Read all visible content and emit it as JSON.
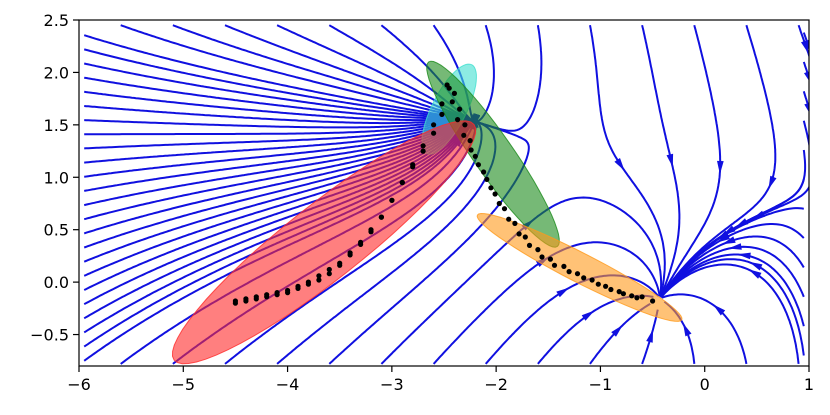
{
  "chart_data": {
    "type": "scatter",
    "title": "",
    "xlabel": "",
    "ylabel": "",
    "xlim": [
      -6,
      1
    ],
    "ylim": [
      -0.8,
      2.5
    ],
    "grid": false,
    "x_ticks": [
      {
        "value": -6,
        "label": "−6"
      },
      {
        "value": -5,
        "label": "−5"
      },
      {
        "value": -4,
        "label": "−4"
      },
      {
        "value": -3,
        "label": "−3"
      },
      {
        "value": -2,
        "label": "−2"
      },
      {
        "value": -1,
        "label": "−1"
      },
      {
        "value": 0,
        "label": "0"
      },
      {
        "value": 1,
        "label": "1"
      }
    ],
    "y_ticks": [
      {
        "value": -0.5,
        "label": "−0.5"
      },
      {
        "value": 0.0,
        "label": "0.0"
      },
      {
        "value": 0.5,
        "label": "0.5"
      },
      {
        "value": 1.0,
        "label": "1.0"
      },
      {
        "value": 1.5,
        "label": "1.5"
      },
      {
        "value": 2.0,
        "label": "2.0"
      },
      {
        "value": 2.5,
        "label": "2.5"
      }
    ],
    "colors": {
      "streamline": "#1010e0",
      "points": "#000000",
      "ellipse_red": "#ff2a2a",
      "ellipse_green": "#1a8a1a",
      "ellipse_cyan": "#40e0d0",
      "ellipse_orange": "#ff9a1a"
    },
    "ellipses": [
      {
        "color": "cyan",
        "center": [
          -2.45,
          1.65
        ],
        "width": 0.95,
        "height": 0.33,
        "angle_deg": 63
      },
      {
        "color": "green",
        "center": [
          -2.03,
          1.22
        ],
        "width": 2.15,
        "height": 0.38,
        "angle_deg": -55
      },
      {
        "color": "red",
        "center": [
          -3.65,
          0.38
        ],
        "width": 3.65,
        "height": 0.72,
        "angle_deg": 38
      },
      {
        "color": "orange",
        "center": [
          -1.2,
          0.14
        ],
        "width": 2.2,
        "height": 0.28,
        "angle_deg": -27
      }
    ],
    "trajectory": [
      [
        -4.5,
        -0.18
      ],
      [
        -4.4,
        -0.16
      ],
      [
        -4.3,
        -0.14
      ],
      [
        -4.2,
        -0.12
      ],
      [
        -4.1,
        -0.1
      ],
      [
        -4.0,
        -0.08
      ],
      [
        -3.9,
        -0.04
      ],
      [
        -3.8,
        0.0
      ],
      [
        -3.7,
        0.06
      ],
      [
        -3.6,
        0.12
      ],
      [
        -3.5,
        0.18
      ],
      [
        -3.4,
        0.28
      ],
      [
        -3.3,
        0.38
      ],
      [
        -3.2,
        0.5
      ],
      [
        -3.1,
        0.62
      ],
      [
        -3.0,
        0.78
      ],
      [
        -2.9,
        0.95
      ],
      [
        -2.8,
        1.12
      ],
      [
        -2.7,
        1.3
      ],
      [
        -2.6,
        1.5
      ],
      [
        -2.52,
        1.7
      ],
      [
        -2.47,
        1.88
      ],
      [
        -2.45,
        1.85
      ],
      [
        -2.52,
        1.6
      ],
      [
        -2.6,
        1.42
      ],
      [
        -2.7,
        1.25
      ],
      [
        -2.8,
        1.1
      ],
      [
        -2.9,
        0.95
      ],
      [
        -3.0,
        0.78
      ],
      [
        -3.1,
        0.62
      ],
      [
        -3.2,
        0.48
      ],
      [
        -3.3,
        0.36
      ],
      [
        -3.4,
        0.26
      ],
      [
        -3.5,
        0.16
      ],
      [
        -3.6,
        0.08
      ],
      [
        -3.7,
        0.02
      ],
      [
        -3.8,
        -0.02
      ],
      [
        -3.9,
        -0.06
      ],
      [
        -4.0,
        -0.1
      ],
      [
        -4.1,
        -0.12
      ],
      [
        -4.2,
        -0.14
      ],
      [
        -4.3,
        -0.16
      ],
      [
        -4.4,
        -0.18
      ],
      [
        -4.5,
        -0.2
      ],
      [
        -2.4,
        1.8
      ],
      [
        -2.35,
        1.65
      ],
      [
        -2.3,
        1.5
      ],
      [
        -2.25,
        1.35
      ],
      [
        -2.2,
        1.2
      ],
      [
        -2.12,
        1.05
      ],
      [
        -2.05,
        0.9
      ],
      [
        -1.97,
        0.75
      ],
      [
        -1.88,
        0.6
      ],
      [
        -1.78,
        0.46
      ],
      [
        -1.68,
        0.35
      ],
      [
        -1.56,
        0.24
      ],
      [
        -1.44,
        0.16
      ],
      [
        -1.3,
        0.1
      ],
      [
        -1.16,
        0.04
      ],
      [
        -1.02,
        -0.02
      ],
      [
        -0.9,
        -0.07
      ],
      [
        -0.78,
        -0.11
      ],
      [
        -0.65,
        -0.15
      ],
      [
        -0.5,
        -0.18
      ],
      [
        -2.42,
        1.72
      ],
      [
        -2.37,
        1.55
      ],
      [
        -2.31,
        1.4
      ],
      [
        -2.24,
        1.26
      ],
      [
        -2.17,
        1.12
      ],
      [
        -2.09,
        0.98
      ],
      [
        -2.01,
        0.84
      ],
      [
        -1.92,
        0.7
      ],
      [
        -1.82,
        0.56
      ],
      [
        -1.72,
        0.43
      ],
      [
        -1.6,
        0.31
      ],
      [
        -1.48,
        0.22
      ],
      [
        -1.35,
        0.15
      ],
      [
        -1.22,
        0.08
      ],
      [
        -1.08,
        0.02
      ],
      [
        -0.95,
        -0.04
      ],
      [
        -0.82,
        -0.09
      ],
      [
        -0.7,
        -0.13
      ],
      [
        -0.6,
        -0.14
      ]
    ]
  }
}
